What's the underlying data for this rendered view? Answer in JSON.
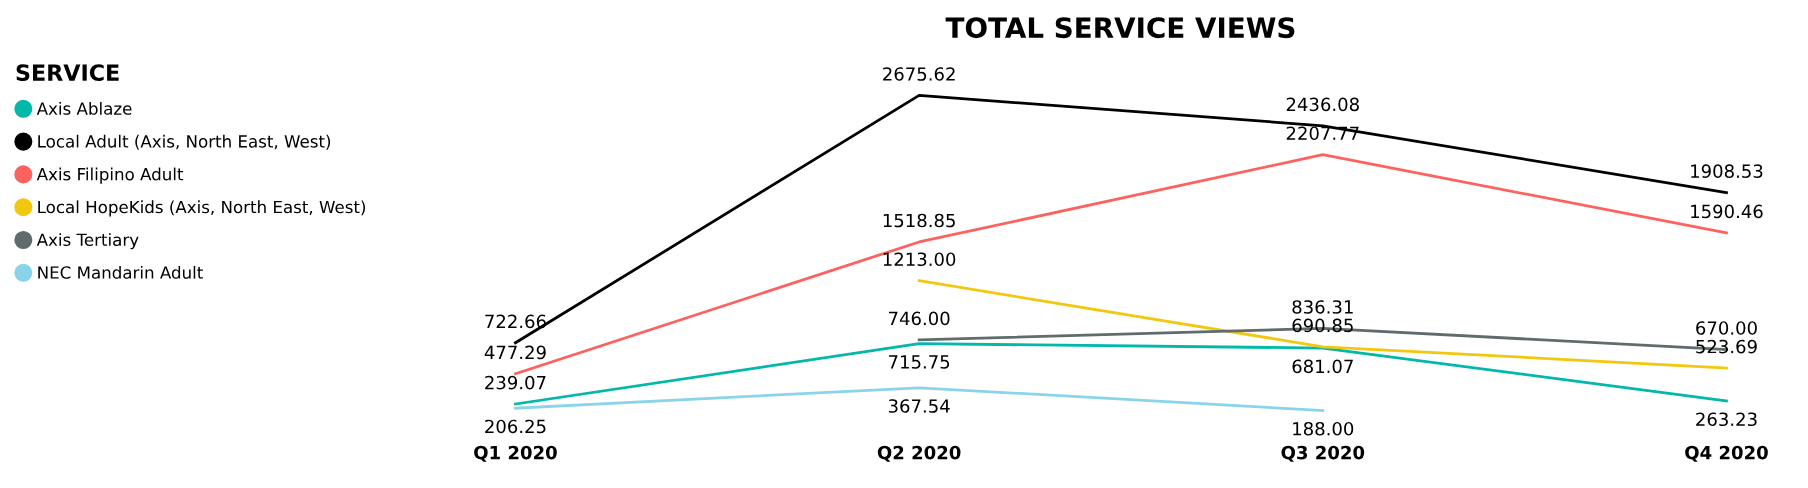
{
  "chart_data": {
    "type": "line",
    "title": "TOTAL SERVICE VIEWS",
    "legend_title": "SERVICE",
    "legend": "left",
    "grid": false,
    "marker": "none",
    "line_style": "solid",
    "categories": [
      "Q1 2020",
      "Q2 2020",
      "Q3 2020",
      "Q4 2020"
    ],
    "series": [
      {
        "name": "Axis Ablaze",
        "color": "#01b8aa",
        "values": [
          239.07,
          715.75,
          681.07,
          263.23
        ],
        "value_labels": [
          "239.07",
          "715.75",
          "681.07",
          "263.23"
        ]
      },
      {
        "name": "Local Adult (Axis, North East, West)",
        "color": "#000000",
        "values": [
          722.66,
          2675.62,
          2436.08,
          1908.53
        ],
        "value_labels": [
          "722.66",
          "2675.62",
          "2436.08",
          "1908.53"
        ]
      },
      {
        "name": "Axis Filipino Adult",
        "color": "#fd625e",
        "values": [
          477.29,
          1518.85,
          2207.77,
          1590.46
        ],
        "value_labels": [
          "477.29",
          "1518.85",
          "2207.77",
          "1590.46"
        ]
      },
      {
        "name": "Local HopeKids (Axis, North East, West)",
        "color": "#f2c80f",
        "values": [
          null,
          1213.0,
          690.85,
          523.69
        ],
        "value_labels": [
          null,
          "1213.00",
          "690.85",
          "523.69"
        ]
      },
      {
        "name": "Axis Tertiary",
        "color": "#5f6b6d",
        "values": [
          null,
          746.0,
          836.31,
          670.0
        ],
        "value_labels": [
          null,
          "746.00",
          "836.31",
          "670.00"
        ]
      },
      {
        "name": "NEC Mandarin Adult",
        "color": "#8ad4eb",
        "values": [
          206.25,
          367.54,
          188.0,
          null
        ],
        "value_labels": [
          "206.25",
          "367.54",
          "188.00",
          null
        ]
      }
    ]
  }
}
